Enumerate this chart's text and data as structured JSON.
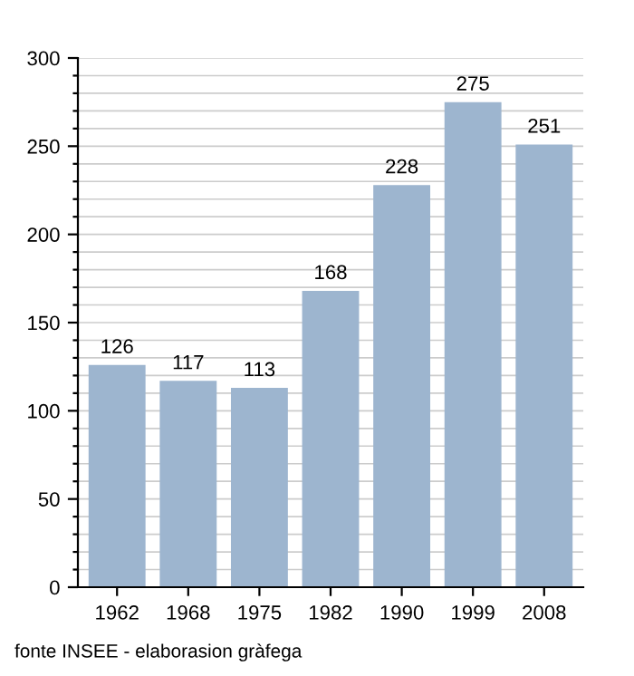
{
  "chart_data": {
    "type": "bar",
    "categories": [
      "1962",
      "1968",
      "1975",
      "1982",
      "1990",
      "1999",
      "2008"
    ],
    "values": [
      126,
      117,
      113,
      168,
      228,
      275,
      251
    ],
    "color": "#9db5cf",
    "data_labels": true,
    "ylim": [
      0,
      300
    ],
    "yticks": [
      0,
      {
        "value": 10,
        "label": null
      },
      {
        "value": 20,
        "label": null
      },
      {
        "value": 30,
        "label": null
      },
      {
        "value": 40,
        "label": null
      },
      50,
      {
        "value": 60,
        "label": null
      },
      {
        "value": 70,
        "label": null
      },
      {
        "value": 80,
        "label": null
      },
      {
        "value": 90,
        "label": null
      },
      100,
      {
        "value": 110,
        "label": null
      },
      {
        "value": 120,
        "label": null
      },
      {
        "value": 130,
        "label": null
      },
      {
        "value": 140,
        "label": null
      },
      150,
      {
        "value": 160,
        "label": null
      },
      {
        "value": 170,
        "label": null
      },
      {
        "value": 180,
        "label": null
      },
      {
        "value": 190,
        "label": null
      },
      200,
      {
        "value": 210,
        "label": null
      },
      {
        "value": 220,
        "label": null
      },
      {
        "value": 230,
        "label": null
      },
      {
        "value": 240,
        "label": null
      },
      250,
      {
        "value": 260,
        "label": null
      },
      {
        "value": 270,
        "label": null
      },
      {
        "value": 280,
        "label": null
      },
      {
        "value": 290,
        "label": null
      },
      300
    ],
    "grid": "y",
    "annotations": [
      "fonte INSEE - elaborasion gràfega"
    ]
  }
}
